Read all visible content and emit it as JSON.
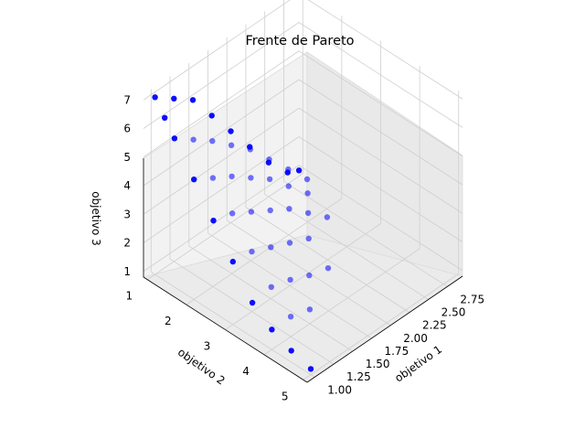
{
  "chart_data": {
    "type": "scatter",
    "title": "Frente de Pareto",
    "xlabel": "objetivo 1",
    "ylabel": "objetivo 2",
    "zlabel": "objetivo 3",
    "x_ticks": [
      "1.00",
      "1.25",
      "1.50",
      "1.75",
      "2.00",
      "2.25",
      "2.50",
      "2.75"
    ],
    "y_ticks": [
      "1",
      "2",
      "3",
      "4",
      "5"
    ],
    "z_ticks": [
      "1",
      "2",
      "3",
      "4",
      "5",
      "6",
      "7"
    ],
    "xlim": [
      0.9,
      2.95
    ],
    "ylim": [
      0.9,
      5.1
    ],
    "zlim": [
      0.8,
      7.2
    ],
    "grid": true,
    "marker_color": "#0000ff",
    "series": [
      {
        "points": [
          [
            1.0,
            1.0,
            7.0
          ],
          [
            1.0,
            1.25,
            6.5
          ],
          [
            1.0,
            1.5,
            6.0
          ],
          [
            1.0,
            2.0,
            5.0
          ],
          [
            1.0,
            2.5,
            4.0
          ],
          [
            1.0,
            3.0,
            3.0
          ],
          [
            1.0,
            3.5,
            2.0
          ],
          [
            1.0,
            4.0,
            1.5
          ],
          [
            1.0,
            4.5,
            1.2
          ],
          [
            1.0,
            5.0,
            1.0
          ],
          [
            1.25,
            1.0,
            6.5
          ],
          [
            1.5,
            1.0,
            6.0
          ],
          [
            1.75,
            1.0,
            5.0
          ],
          [
            2.0,
            1.0,
            4.0
          ],
          [
            2.25,
            1.0,
            3.0
          ],
          [
            2.5,
            1.0,
            2.0
          ],
          [
            2.75,
            1.0,
            1.2
          ],
          [
            2.9,
            1.0,
            1.0
          ],
          [
            1.25,
            1.5,
            5.5
          ],
          [
            1.25,
            2.0,
            4.6
          ],
          [
            1.25,
            2.5,
            3.8
          ],
          [
            1.25,
            3.0,
            2.9
          ],
          [
            1.25,
            3.5,
            2.1
          ],
          [
            1.25,
            4.0,
            1.5
          ],
          [
            1.5,
            1.5,
            5.0
          ],
          [
            1.5,
            2.0,
            4.2
          ],
          [
            1.5,
            2.5,
            3.4
          ],
          [
            1.5,
            3.0,
            2.6
          ],
          [
            1.5,
            3.5,
            1.9
          ],
          [
            1.75,
            1.5,
            4.4
          ],
          [
            1.75,
            2.0,
            3.7
          ],
          [
            1.75,
            2.5,
            3.0
          ],
          [
            1.75,
            3.0,
            2.3
          ],
          [
            1.75,
            3.5,
            1.6
          ],
          [
            2.0,
            1.5,
            3.8
          ],
          [
            2.0,
            2.0,
            3.2
          ],
          [
            2.0,
            2.5,
            2.6
          ],
          [
            2.0,
            3.0,
            2.0
          ],
          [
            2.25,
            1.5,
            3.0
          ],
          [
            2.25,
            2.0,
            2.5
          ],
          [
            2.25,
            2.5,
            2.0
          ],
          [
            2.5,
            1.5,
            2.2
          ],
          [
            2.5,
            2.0,
            1.8
          ],
          [
            1.5,
            4.0,
            1.3
          ],
          [
            2.0,
            3.5,
            1.4
          ],
          [
            2.5,
            2.5,
            1.4
          ],
          [
            2.75,
            1.5,
            1.4
          ]
        ]
      }
    ]
  }
}
